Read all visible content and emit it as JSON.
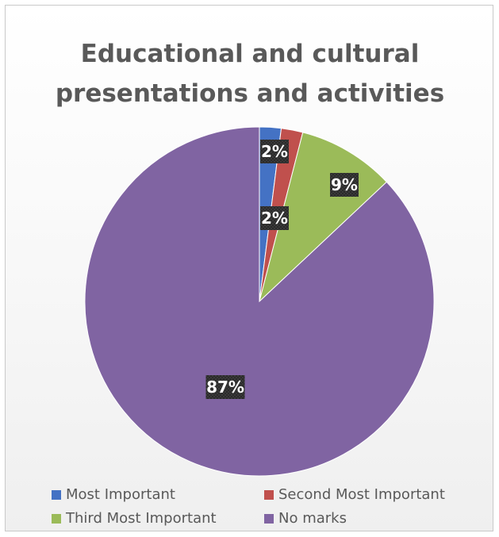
{
  "chart_data": {
    "type": "pie",
    "title": "Educational and cultural presentations and activities",
    "title_lines": [
      "Educational and cultural",
      "presentations and activities"
    ],
    "slices": [
      {
        "name": "Most Important",
        "value": 2,
        "label": "2%",
        "color": "#4472C4"
      },
      {
        "name": "Second Most Important",
        "value": 2,
        "label": "2%",
        "color": "#C0504D"
      },
      {
        "name": "Third Most Important",
        "value": 9,
        "label": "9%",
        "color": "#9BBB59"
      },
      {
        "name": "No marks",
        "value": 87,
        "label": "87%",
        "color": "#8064A2"
      }
    ],
    "legend_position": "bottom"
  }
}
